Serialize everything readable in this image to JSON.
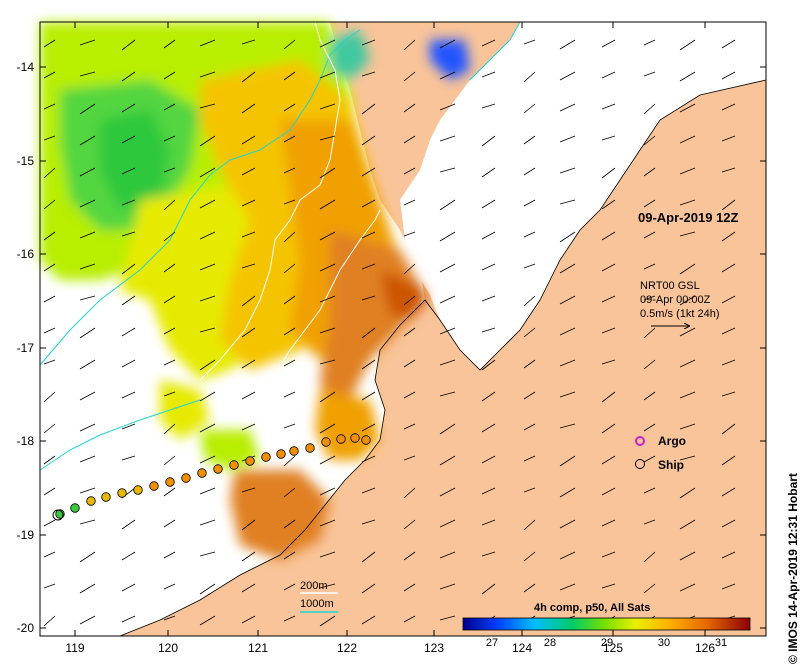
{
  "map": {
    "datetime": "09-Apr-2019 12Z",
    "credit": "© IMOS 14-Apr-2019 12:31 Hobart",
    "current_label": {
      "line1": "NRT00 GSL",
      "line2": "09-Apr 00:00Z",
      "line3": "0.5m/s (1kt 24h)"
    },
    "legend": {
      "argo_label": "Argo",
      "ship_label": "Ship",
      "argo_color": "#cc22cc",
      "ship_color": "#000000"
    },
    "contours": {
      "line1": "200m",
      "line2": "1000m",
      "color_200m": "#ffffff",
      "color_1000m": "#22d3d3"
    },
    "colorbar": {
      "title": "4h comp, p50, All Sats",
      "ticks": [
        "27",
        "28",
        "29",
        "30",
        "31"
      ]
    },
    "axes": {
      "x_ticks": [
        "119",
        "120",
        "121",
        "122",
        "123",
        "124",
        "125",
        "126"
      ],
      "y_ticks": [
        "-14",
        "-15",
        "-16",
        "-17",
        "-18",
        "-19",
        "-20"
      ]
    },
    "colors": {
      "land": "#f9c499",
      "nodata": "#ffffff"
    }
  }
}
